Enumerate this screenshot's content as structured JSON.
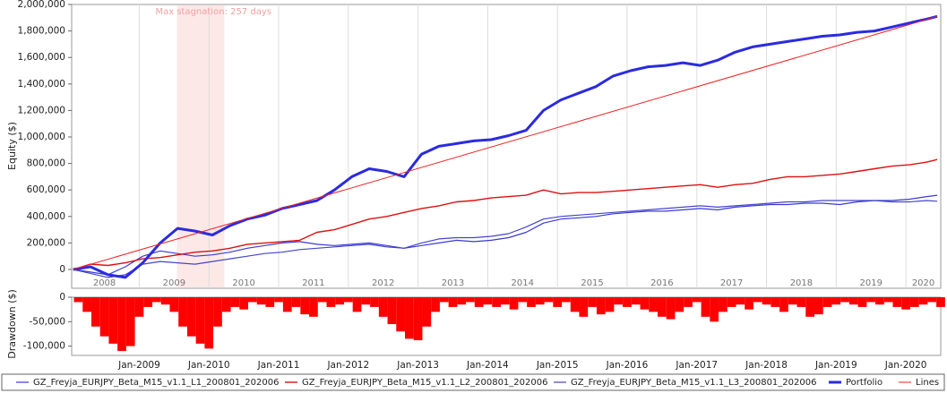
{
  "chart_data": [
    {
      "type": "line",
      "y_label": "Equity ($)",
      "xlim": [
        2008.03,
        2020.5
      ],
      "xticks": [
        {
          "value": 2008.5,
          "label": "2008"
        },
        {
          "value": 2009.5,
          "label": "2009"
        },
        {
          "value": 2010.5,
          "label": "2010"
        },
        {
          "value": 2011.5,
          "label": "2011"
        },
        {
          "value": 2012.5,
          "label": "2012"
        },
        {
          "value": 2013.5,
          "label": "2013"
        },
        {
          "value": 2014.5,
          "label": "2014"
        },
        {
          "value": 2015.5,
          "label": "2015"
        },
        {
          "value": 2016.5,
          "label": "2016"
        },
        {
          "value": 2017.5,
          "label": "2017"
        },
        {
          "value": 2018.5,
          "label": "2018"
        },
        {
          "value": 2019.5,
          "label": "2019"
        },
        {
          "value": 2020.25,
          "label": "2020"
        }
      ],
      "ylim": [
        -142000,
        2000000
      ],
      "yticks": [
        0,
        {
          "value": 200000,
          "label": "200,000"
        },
        {
          "value": 400000,
          "label": "400,000"
        },
        {
          "value": 600000,
          "label": "600,000"
        },
        {
          "value": 800000,
          "label": "800,000"
        },
        {
          "value": 1000000,
          "label": "1,000,000"
        },
        {
          "value": 1200000,
          "label": "1,200,000"
        },
        {
          "value": 1400000,
          "label": "1,400,000"
        },
        {
          "value": 1600000,
          "label": "1,600,000"
        },
        {
          "value": 1800000,
          "label": "1,800,000"
        },
        {
          "value": 2000000,
          "label": "2,000,000"
        }
      ],
      "annotation": {
        "text": "Max stagnation: 257 days",
        "span": [
          2009.54,
          2010.22
        ],
        "color": "#fde8e8"
      },
      "x": [
        2008.05,
        2008.3,
        2008.55,
        2008.8,
        2009.05,
        2009.3,
        2009.55,
        2009.8,
        2010.05,
        2010.3,
        2010.55,
        2010.8,
        2011.05,
        2011.3,
        2011.55,
        2011.8,
        2012.05,
        2012.3,
        2012.55,
        2012.8,
        2013.05,
        2013.3,
        2013.55,
        2013.8,
        2014.05,
        2014.3,
        2014.55,
        2014.8,
        2015.05,
        2015.3,
        2015.55,
        2015.8,
        2016.05,
        2016.3,
        2016.55,
        2016.8,
        2017.05,
        2017.3,
        2017.55,
        2017.8,
        2018.05,
        2018.3,
        2018.55,
        2018.8,
        2019.05,
        2019.3,
        2019.55,
        2019.8,
        2020.05,
        2020.3,
        2020.45
      ],
      "series": [
        {
          "name": "GZ_Freyja_EURJPY_Beta_M15_v1.1_L1_200801_202006",
          "color": "#3a3ad6",
          "width": 1.2,
          "values": [
            0,
            -20000,
            -40000,
            20000,
            100000,
            140000,
            120000,
            100000,
            110000,
            130000,
            160000,
            180000,
            200000,
            210000,
            190000,
            180000,
            190000,
            200000,
            180000,
            160000,
            180000,
            200000,
            220000,
            210000,
            220000,
            240000,
            280000,
            350000,
            380000,
            390000,
            400000,
            420000,
            430000,
            440000,
            440000,
            450000,
            460000,
            450000,
            470000,
            480000,
            490000,
            490000,
            500000,
            500000,
            490000,
            510000,
            520000,
            520000,
            530000,
            550000,
            560000
          ]
        },
        {
          "name": "GZ_Freyja_EURJPY_Beta_M15_v1.1_L2_200801_202006",
          "color": "#dd1111",
          "width": 1.4,
          "values": [
            0,
            40000,
            30000,
            50000,
            80000,
            90000,
            110000,
            130000,
            140000,
            160000,
            190000,
            200000,
            210000,
            220000,
            280000,
            300000,
            340000,
            380000,
            400000,
            430000,
            460000,
            480000,
            510000,
            520000,
            540000,
            550000,
            560000,
            600000,
            570000,
            580000,
            580000,
            590000,
            600000,
            610000,
            620000,
            630000,
            640000,
            620000,
            640000,
            650000,
            680000,
            700000,
            700000,
            710000,
            720000,
            740000,
            760000,
            780000,
            790000,
            810000,
            830000
          ]
        },
        {
          "name": "GZ_Freyja_EURJPY_Beta_M15_v1.1_L3_200801_202006",
          "color": "#4444cc",
          "width": 1.2,
          "values": [
            0,
            -30000,
            -60000,
            -40000,
            40000,
            60000,
            50000,
            40000,
            60000,
            80000,
            100000,
            120000,
            130000,
            150000,
            160000,
            170000,
            180000,
            190000,
            170000,
            160000,
            200000,
            230000,
            240000,
            240000,
            250000,
            270000,
            320000,
            380000,
            400000,
            410000,
            420000,
            430000,
            440000,
            450000,
            460000,
            470000,
            480000,
            470000,
            480000,
            490000,
            500000,
            510000,
            510000,
            520000,
            520000,
            520000,
            520000,
            510000,
            510000,
            520000,
            515000
          ]
        },
        {
          "name": "Portfolio",
          "color": "#2b2be0",
          "width": 3,
          "values": [
            0,
            20000,
            -40000,
            -60000,
            50000,
            200000,
            310000,
            290000,
            260000,
            330000,
            380000,
            410000,
            460000,
            490000,
            520000,
            600000,
            700000,
            760000,
            740000,
            700000,
            870000,
            930000,
            950000,
            970000,
            980000,
            1010000,
            1050000,
            1200000,
            1280000,
            1330000,
            1380000,
            1460000,
            1500000,
            1530000,
            1540000,
            1560000,
            1540000,
            1580000,
            1640000,
            1680000,
            1700000,
            1720000,
            1740000,
            1760000,
            1770000,
            1790000,
            1800000,
            1830000,
            1860000,
            1890000,
            1910000
          ]
        },
        {
          "name": "Lines",
          "color": "#ee2222",
          "width": 1,
          "x": [
            2008.05,
            2020.45
          ],
          "values": [
            0,
            1910000
          ]
        }
      ]
    },
    {
      "type": "bar",
      "y_label": "Drawdown ($)",
      "color": "#ff0000",
      "xlim": [
        2008.03,
        2020.5
      ],
      "xticks": [
        {
          "value": 2009.0,
          "label": "Jan-2009"
        },
        {
          "value": 2010.0,
          "label": "Jan-2010"
        },
        {
          "value": 2011.0,
          "label": "Jan-2011"
        },
        {
          "value": 2012.0,
          "label": "Jan-2012"
        },
        {
          "value": 2013.0,
          "label": "Jan-2013"
        },
        {
          "value": 2014.0,
          "label": "Jan-2014"
        },
        {
          "value": 2015.0,
          "label": "Jan-2015"
        },
        {
          "value": 2016.0,
          "label": "Jan-2016"
        },
        {
          "value": 2017.0,
          "label": "Jan-2017"
        },
        {
          "value": 2018.0,
          "label": "Jan-2018"
        },
        {
          "value": 2019.0,
          "label": "Jan-2019"
        },
        {
          "value": 2020.0,
          "label": "Jan-2020"
        }
      ],
      "ylim": [
        -119000,
        0
      ],
      "yticks": [
        0,
        {
          "value": -50000,
          "label": "-50,000"
        },
        {
          "value": -100000,
          "label": "-100,000"
        }
      ],
      "bar_width": 0.125,
      "x": [
        2008.125,
        2008.25,
        2008.375,
        2008.5,
        2008.625,
        2008.75,
        2008.875,
        2009.0,
        2009.125,
        2009.25,
        2009.375,
        2009.5,
        2009.625,
        2009.75,
        2009.875,
        2010.0,
        2010.125,
        2010.25,
        2010.375,
        2010.5,
        2010.625,
        2010.75,
        2010.875,
        2011.0,
        2011.125,
        2011.25,
        2011.375,
        2011.5,
        2011.625,
        2011.75,
        2011.875,
        2012.0,
        2012.125,
        2012.25,
        2012.375,
        2012.5,
        2012.625,
        2012.75,
        2012.875,
        2013.0,
        2013.125,
        2013.25,
        2013.375,
        2013.5,
        2013.625,
        2013.75,
        2013.875,
        2014.0,
        2014.125,
        2014.25,
        2014.375,
        2014.5,
        2014.625,
        2014.75,
        2014.875,
        2015.0,
        2015.125,
        2015.25,
        2015.375,
        2015.5,
        2015.625,
        2015.75,
        2015.875,
        2016.0,
        2016.125,
        2016.25,
        2016.375,
        2016.5,
        2016.625,
        2016.75,
        2016.875,
        2017.0,
        2017.125,
        2017.25,
        2017.375,
        2017.5,
        2017.625,
        2017.75,
        2017.875,
        2018.0,
        2018.125,
        2018.25,
        2018.375,
        2018.5,
        2018.625,
        2018.75,
        2018.875,
        2019.0,
        2019.125,
        2019.25,
        2019.375,
        2019.5,
        2019.625,
        2019.75,
        2019.875,
        2020.0,
        2020.125,
        2020.25,
        2020.375,
        2020.5
      ],
      "values": [
        -10000,
        -30000,
        -60000,
        -80000,
        -95000,
        -110000,
        -100000,
        -40000,
        -20000,
        -10000,
        -15000,
        -30000,
        -60000,
        -80000,
        -95000,
        -105000,
        -60000,
        -30000,
        -20000,
        -25000,
        -10000,
        -15000,
        -20000,
        -10000,
        -30000,
        -20000,
        -35000,
        -40000,
        -10000,
        -20000,
        -15000,
        -10000,
        -30000,
        -15000,
        -20000,
        -40000,
        -55000,
        -70000,
        -85000,
        -88000,
        -60000,
        -30000,
        -10000,
        -20000,
        -15000,
        -10000,
        -20000,
        -15000,
        -20000,
        -15000,
        -25000,
        -10000,
        -20000,
        -15000,
        -10000,
        -20000,
        -10000,
        -30000,
        -40000,
        -20000,
        -35000,
        -30000,
        -15000,
        -20000,
        -15000,
        -25000,
        -30000,
        -40000,
        -45000,
        -30000,
        -20000,
        -10000,
        -40000,
        -50000,
        -30000,
        -20000,
        -15000,
        -25000,
        -10000,
        -15000,
        -20000,
        -30000,
        -15000,
        -20000,
        -40000,
        -35000,
        -20000,
        -15000,
        -10000,
        -15000,
        -20000,
        -10000,
        -15000,
        -10000,
        -20000,
        -25000,
        -20000,
        -15000,
        -10000,
        -20000
      ]
    }
  ]
}
